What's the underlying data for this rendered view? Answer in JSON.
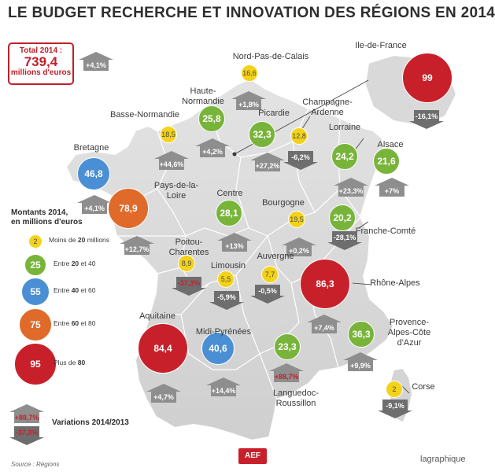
{
  "title": "LE BUDGET RECHERCHE ET INNOVATION DES RÉGIONS EN 2014",
  "total": {
    "label": "Total 2014 :",
    "value": "739,4",
    "unit": "millions d'euros",
    "variation": "+4,1%"
  },
  "legend": {
    "title_line1": "Montants 2014,",
    "title_line2": "en millions d'euros",
    "items": [
      {
        "sample": "2",
        "text_prefix": "Moins de ",
        "text_bold": "20",
        "text_suffix": " millions",
        "color": "#f3d21a"
      },
      {
        "sample": "25",
        "text_prefix": "Entre ",
        "text_bold": "20",
        "text_suffix": " et 40",
        "color": "#78b43a"
      },
      {
        "sample": "55",
        "text_prefix": "Entre ",
        "text_bold": "40",
        "text_suffix": " et 60",
        "color": "#4a8fd4"
      },
      {
        "sample": "75",
        "text_prefix": "Entre ",
        "text_bold": "60",
        "text_suffix": " et 80",
        "color": "#e06a2a"
      },
      {
        "sample": "95",
        "text_prefix": "Plus de ",
        "text_bold": "80",
        "text_suffix": "",
        "color": "#c8202a"
      }
    ],
    "variation_up": "+88,7%",
    "variation_down": "-37,3%",
    "variation_label": "Variations 2014/2013"
  },
  "regions": [
    {
      "name": "Nord-Pas-de-Calais",
      "amount": "16,6",
      "variation": "+1,8%",
      "class": "yellow",
      "dir": "up"
    },
    {
      "name": "Ile-de-France",
      "amount": "99",
      "variation": "-16,1%",
      "class": "red",
      "dir": "down"
    },
    {
      "name": "Haute-Normandie",
      "amount": "25,8",
      "variation": "+4,2%",
      "class": "green",
      "dir": "up"
    },
    {
      "name": "Basse-Normandie",
      "amount": "18,5",
      "variation": "+44,6%",
      "class": "yellow",
      "dir": "up"
    },
    {
      "name": "Picardie",
      "amount": "32,3",
      "variation": "+27,2%",
      "class": "green",
      "dir": "up"
    },
    {
      "name": "Champagne-Ardenne",
      "amount": "12,8",
      "variation": "-6,2%",
      "class": "yellow",
      "dir": "down"
    },
    {
      "name": "Lorraine",
      "amount": "24,2",
      "variation": "+23,3%",
      "class": "green",
      "dir": "up"
    },
    {
      "name": "Alsace",
      "amount": "21,6",
      "variation": "+7%",
      "class": "green",
      "dir": "up"
    },
    {
      "name": "Bretagne",
      "amount": "46,8",
      "variation": "+4,1%",
      "class": "blue",
      "dir": "up"
    },
    {
      "name": "Pays-de-la-Loire",
      "amount": "78,9",
      "variation": "+12,7%",
      "class": "orange",
      "dir": "up"
    },
    {
      "name": "Centre",
      "amount": "28,1",
      "variation": "+13%",
      "class": "green",
      "dir": "up"
    },
    {
      "name": "Bourgogne",
      "amount": "19,5",
      "variation": "+0,2%",
      "class": "yellow",
      "dir": "up"
    },
    {
      "name": "Franche-Comté",
      "amount": "20,2",
      "variation": "-28,1%",
      "class": "green",
      "dir": "down"
    },
    {
      "name": "Poitou-Charentes",
      "amount": "8,9",
      "variation": "-37,3%",
      "class": "yellow",
      "dir": "down"
    },
    {
      "name": "Limousin",
      "amount": "5,5",
      "variation": "-5,9%",
      "class": "yellow",
      "dir": "down"
    },
    {
      "name": "Auvergne",
      "amount": "7,7",
      "variation": "-0,5%",
      "class": "yellow",
      "dir": "down"
    },
    {
      "name": "Rhône-Alpes",
      "amount": "86,3",
      "variation": "+7,4%",
      "class": "red",
      "dir": "up"
    },
    {
      "name": "Aquitaine",
      "amount": "84,4",
      "variation": "+4,7%",
      "class": "red",
      "dir": "up"
    },
    {
      "name": "Midi-Pyrénées",
      "amount": "40,6",
      "variation": "+14,4%",
      "class": "blue",
      "dir": "up"
    },
    {
      "name": "Languedoc-Roussillon",
      "amount": "23,3",
      "variation": "+88,7%",
      "class": "green",
      "dir": "up"
    },
    {
      "name": "Provence-Alpes-Côte d'Azur",
      "amount": "36,3",
      "variation": "+9,9%",
      "class": "green",
      "dir": "up"
    },
    {
      "name": "Corse",
      "amount": "2",
      "variation": "-9,1%",
      "class": "yellow",
      "dir": "down"
    }
  ],
  "source": "Source : Régions",
  "publisher_logo": "AEF",
  "credit": "lagraphique",
  "colors": {
    "up_arrow": "#8e8e8e",
    "down_arrow": "#6e6e6e",
    "highlight_up_text": "#c8202a",
    "map_fill": "#d9d9d9",
    "map_border": "#ffffff"
  }
}
